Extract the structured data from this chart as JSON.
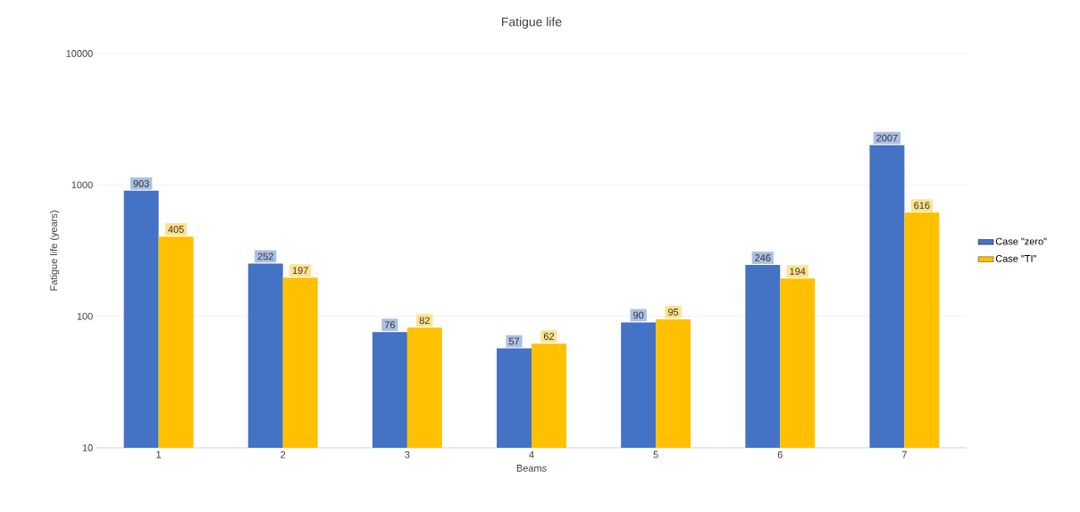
{
  "chart_data": {
    "type": "bar",
    "title": "Fatigue life",
    "xlabel": "Beams",
    "ylabel": "Fatigue life (years)",
    "categories": [
      "1",
      "2",
      "3",
      "4",
      "5",
      "6",
      "7"
    ],
    "series": [
      {
        "name": "Case \"zero\"",
        "color": "#4472c4",
        "values": [
          903,
          252,
          76,
          57,
          90,
          246,
          2007
        ]
      },
      {
        "name": "Case \"TI\"",
        "color": "#ffc000",
        "values": [
          405,
          197,
          82,
          62,
          95,
          194,
          616
        ]
      }
    ],
    "log": true,
    "ylim": [
      10,
      10000
    ],
    "yticks": [
      10,
      100,
      1000,
      10000
    ],
    "grid": "y",
    "legend": "right",
    "data_labels": true
  }
}
